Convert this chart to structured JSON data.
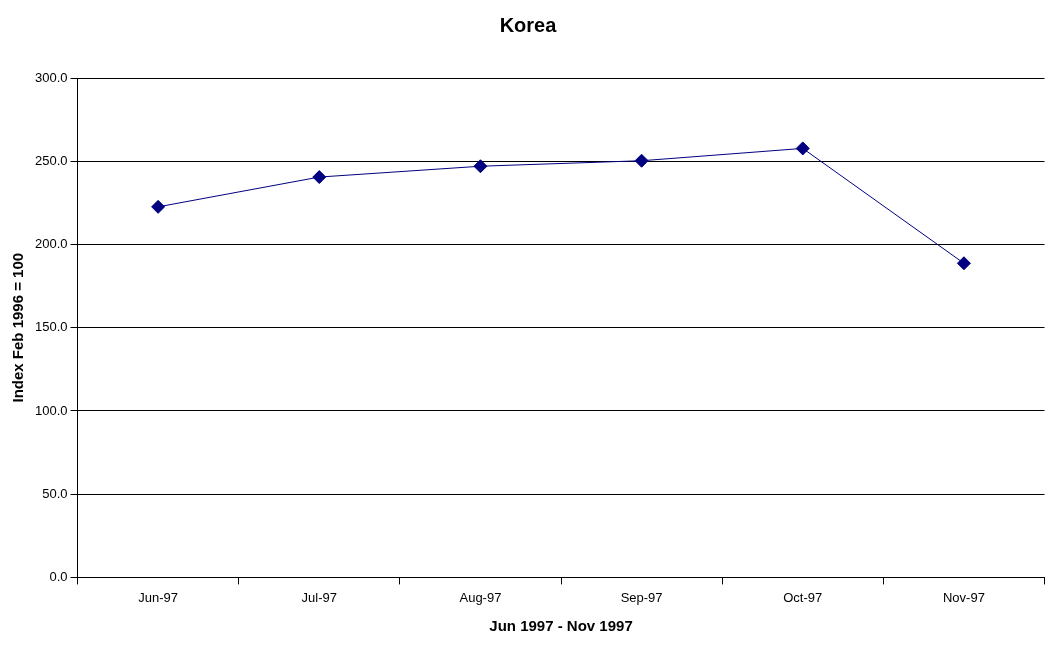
{
  "chart_data": {
    "type": "line",
    "title": "Korea",
    "xlabel": "Jun 1997 - Nov 1997",
    "ylabel": "Index Feb 1996 = 100",
    "categories": [
      "Jun-97",
      "Jul-97",
      "Aug-97",
      "Sep-97",
      "Oct-97",
      "Nov-97"
    ],
    "series": [
      {
        "color": "#000080",
        "values": [
          222.6,
          240.5,
          247,
          250.3,
          257.7,
          188.7
        ]
      }
    ],
    "ylim": [
      0,
      300
    ],
    "yticks": [
      {
        "value": 0,
        "label": "0.0"
      },
      {
        "value": 50,
        "label": "50.0"
      },
      {
        "value": 100,
        "label": "100.0"
      },
      {
        "value": 150,
        "label": "150.0"
      },
      {
        "value": 200,
        "label": "200.0"
      },
      {
        "value": 250,
        "label": "250.0"
      },
      {
        "value": 300,
        "label": "300.0"
      }
    ],
    "grid": "y",
    "legend": false,
    "marker": "diamond",
    "line_style": "solid"
  }
}
